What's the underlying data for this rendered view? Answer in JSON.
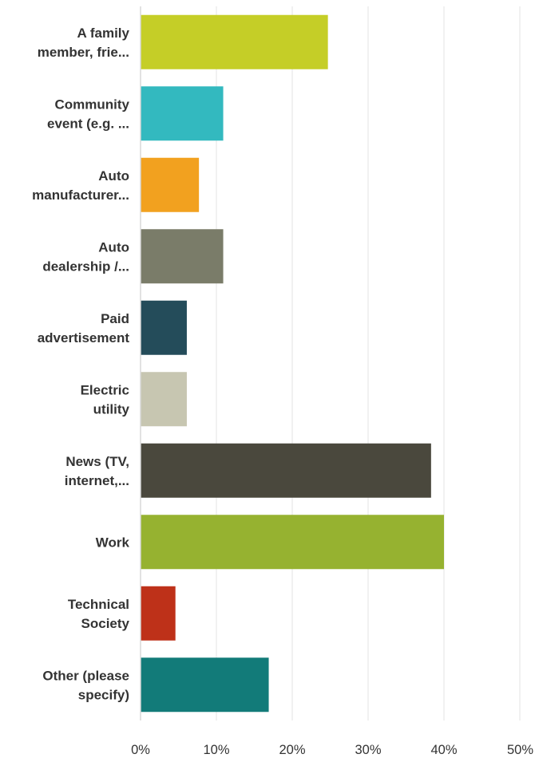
{
  "chart_data": {
    "type": "bar",
    "orientation": "horizontal",
    "categories": [
      [
        "A family",
        "member, frie..."
      ],
      [
        "Community",
        "event (e.g. ..."
      ],
      [
        "Auto",
        "manufacturer..."
      ],
      [
        "Auto",
        "dealership /..."
      ],
      [
        "Paid",
        "advertisement"
      ],
      [
        "Electric",
        "utility"
      ],
      [
        "News (TV,",
        "internet,..."
      ],
      [
        "Work"
      ],
      [
        "Technical",
        "Society"
      ],
      [
        "Other (please",
        "specify)"
      ]
    ],
    "values": [
      24.7,
      10.9,
      7.7,
      10.9,
      6.1,
      6.1,
      38.3,
      40.0,
      4.6,
      16.9
    ],
    "colors": [
      "#c5ce27",
      "#33b9bf",
      "#f2a11f",
      "#7a7c69",
      "#244c5a",
      "#c7c6b1",
      "#4a483d",
      "#96b230",
      "#be3119",
      "#127b79"
    ],
    "x_ticks": [
      "0%",
      "10%",
      "20%",
      "30%",
      "40%",
      "50%"
    ],
    "xlim": [
      0,
      50
    ],
    "grid": true,
    "title": "",
    "xlabel": "",
    "ylabel": ""
  }
}
